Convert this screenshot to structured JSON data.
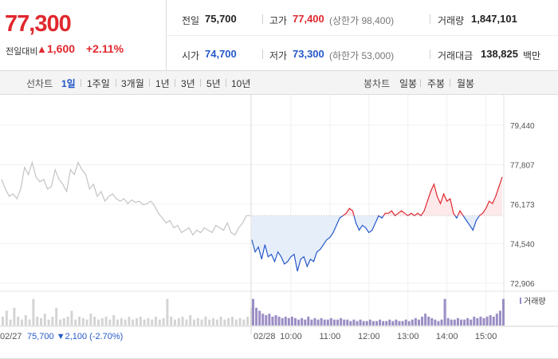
{
  "quote": {
    "price": "77,300",
    "change_label": "전일대비",
    "change_arrow": "▲",
    "change_value": "1,600",
    "change_pct": "+2.11%",
    "prev_close_label": "전일",
    "prev_close": "75,700",
    "high_label": "고가",
    "high": "77,400",
    "upper_limit": "(상한가 98,400)",
    "volume_label": "거래량",
    "volume": "1,847,101",
    "open_label": "시가",
    "open": "74,700",
    "low_label": "저가",
    "low": "73,300",
    "lower_limit": "(하한가 53,000)",
    "amount_label": "거래대금",
    "amount": "138,825",
    "amount_unit": "백만"
  },
  "toolbar": {
    "line_label": "선차트",
    "line_periods": [
      "1일",
      "1주일",
      "3개월",
      "1년",
      "3년",
      "5년",
      "10년"
    ],
    "active_period": "1일",
    "candle_label": "봉차트",
    "candle_periods": [
      "일봉",
      "주봉",
      "월봉"
    ]
  },
  "colors": {
    "up": "#e0282e",
    "down": "#2559c8",
    "prev_day": "#c4c4c4",
    "volume": "#9b8ec4"
  },
  "chart_data": {
    "type": "line",
    "y_ticks": [
      "79,440",
      "77,807",
      "76,173",
      "74,540",
      "72,906"
    ],
    "ylim": [
      72906,
      79440
    ],
    "prev_close": 75700,
    "volume_legend": "거래량",
    "x_labels": [
      "02/28",
      "10:00",
      "11:00",
      "12:00",
      "13:00",
      "14:00",
      "15:00"
    ],
    "prev_day_label": "02/27",
    "prev_day_summary": "75,700 ▼2,100 (-2.70%)",
    "prev_day_series": [
      77200,
      76800,
      76500,
      76600,
      76400,
      76800,
      77700,
      77400,
      77900,
      77300,
      77100,
      77200,
      76800,
      76900,
      77600,
      77200,
      77000,
      76700,
      77600,
      77400,
      77900,
      77600,
      77400,
      76800,
      77000,
      76500,
      76700,
      76300,
      76500,
      76600,
      76400,
      76300,
      76400,
      76200,
      76350,
      76250,
      76300,
      76150,
      76200,
      76300,
      76100,
      75800,
      75600,
      75400,
      75500,
      75200,
      75300,
      75000,
      75100,
      75200,
      74900,
      75100,
      75000,
      75200,
      75100,
      75000,
      75300,
      75200,
      75100,
      75400,
      75000,
      74900,
      75200,
      75400,
      75700,
      75700
    ],
    "today_times": [
      "09:00",
      "09:05",
      "09:10",
      "09:15",
      "09:20",
      "09:25",
      "09:30",
      "09:35",
      "09:40",
      "09:45",
      "09:50",
      "09:55",
      "10:00",
      "10:05",
      "10:10",
      "10:15",
      "10:20",
      "10:25",
      "10:30",
      "10:35",
      "10:40",
      "10:45",
      "10:50",
      "10:55",
      "11:00",
      "11:05",
      "11:10",
      "11:15",
      "11:20",
      "11:25",
      "11:30",
      "11:35",
      "11:40",
      "11:45",
      "11:50",
      "11:55",
      "12:00",
      "12:05",
      "12:10",
      "12:15",
      "12:20",
      "12:25",
      "12:30",
      "12:35",
      "12:40",
      "12:45",
      "12:50",
      "12:55",
      "13:00",
      "13:05",
      "13:10",
      "13:15",
      "13:20",
      "13:25",
      "13:30",
      "13:35",
      "13:40",
      "13:45",
      "13:50",
      "13:55",
      "14:00",
      "14:05",
      "14:10",
      "14:15",
      "14:20",
      "14:25",
      "14:30",
      "14:35",
      "14:40",
      "14:45",
      "14:50",
      "14:55",
      "15:00",
      "15:05",
      "15:10",
      "15:15",
      "15:20",
      "15:30"
    ],
    "today_series": [
      74700,
      74200,
      74400,
      73900,
      74500,
      74000,
      74100,
      73800,
      74200,
      74000,
      73700,
      73800,
      74000,
      74100,
      73400,
      73900,
      74000,
      73600,
      73900,
      73800,
      74200,
      74300,
      74500,
      74700,
      74800,
      75000,
      75300,
      75600,
      75700,
      75800,
      76000,
      75900,
      75400,
      75100,
      75300,
      75200,
      75000,
      75100,
      75400,
      75700,
      75600,
      75800,
      75800,
      75900,
      75700,
      75800,
      75900,
      75800,
      75700,
      75800,
      75700,
      75800,
      75700,
      75900,
      76300,
      76700,
      77000,
      76500,
      76200,
      76600,
      76300,
      76400,
      75800,
      75600,
      75900,
      75700,
      75500,
      75300,
      75100,
      75500,
      75700,
      75800,
      76000,
      76300,
      76200,
      76500,
      76900,
      77300
    ],
    "prev_day_volume": [
      0.3,
      0.5,
      0.2,
      0.6,
      0.3,
      0.2,
      0.35,
      0.2,
      0.9,
      0.3,
      0.25,
      0.4,
      0.2,
      0.3,
      0.6,
      0.2,
      0.25,
      0.3,
      0.5,
      0.2,
      0.3,
      0.25,
      0.2,
      0.4,
      0.3,
      0.2,
      0.25,
      0.3,
      0.2,
      0.35,
      0.2,
      0.25,
      0.2,
      0.3,
      0.2,
      0.25,
      0.3,
      0.2,
      0.25,
      0.2,
      0.3,
      0.2,
      0.25,
      0.9,
      0.3,
      0.2,
      0.25,
      0.3,
      0.2,
      0.35,
      0.2,
      0.25,
      0.2,
      0.3,
      0.2,
      0.25,
      0.2,
      0.3,
      0.2,
      0.25,
      0.3,
      0.2,
      0.25,
      0.2,
      0.3,
      0.6
    ],
    "today_volume": [
      0.9,
      0.6,
      0.5,
      0.4,
      0.35,
      0.4,
      0.3,
      0.35,
      0.3,
      0.25,
      0.3,
      0.25,
      0.3,
      0.25,
      0.2,
      0.25,
      0.2,
      0.3,
      0.2,
      0.25,
      0.2,
      0.25,
      0.2,
      0.2,
      0.25,
      0.2,
      0.2,
      0.25,
      0.2,
      0.2,
      0.15,
      0.2,
      0.15,
      0.2,
      0.15,
      0.15,
      0.2,
      0.15,
      0.15,
      0.2,
      0.15,
      0.15,
      0.2,
      0.15,
      0.2,
      0.15,
      0.15,
      0.2,
      0.15,
      0.2,
      0.25,
      0.2,
      0.3,
      0.4,
      0.3,
      0.25,
      0.2,
      0.15,
      0.2,
      0.9,
      0.25,
      0.2,
      0.2,
      0.25,
      0.2,
      0.2,
      0.25,
      0.2,
      0.3,
      0.25,
      0.3,
      0.25,
      0.3,
      0.35,
      0.3,
      0.4,
      0.5,
      0.9
    ]
  }
}
